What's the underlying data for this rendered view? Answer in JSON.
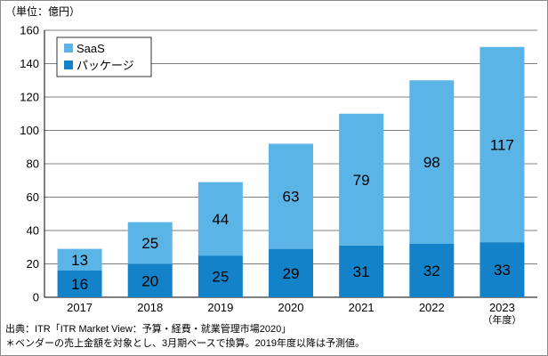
{
  "unit_label": "（単位：億円）",
  "source_line": "出典：ITR「ITR Market View：予算・経費・就業管理市場2020」",
  "note_line": "＊ベンダーの売上金額を対象とし、3月期ベースで換算。2019年度以降は予測値。",
  "x_axis_suffix": "（年度）",
  "colors": {
    "saas": "#5bb4e6",
    "package": "#1482c8",
    "axis": "#000000",
    "grid": "#000000"
  },
  "chart_data": {
    "type": "bar",
    "stacked": true,
    "categories": [
      "2017",
      "2018",
      "2019",
      "2020",
      "2021",
      "2022",
      "2023"
    ],
    "series": [
      {
        "name": "パッケージ",
        "values": [
          16,
          20,
          25,
          29,
          31,
          32,
          33
        ]
      },
      {
        "name": "SaaS",
        "values": [
          13,
          25,
          44,
          63,
          79,
          98,
          117
        ]
      }
    ],
    "ylim": [
      0,
      160
    ],
    "yticks": [
      0,
      20,
      40,
      60,
      80,
      100,
      120,
      140,
      160
    ],
    "grid": true,
    "legend": "top-left"
  }
}
